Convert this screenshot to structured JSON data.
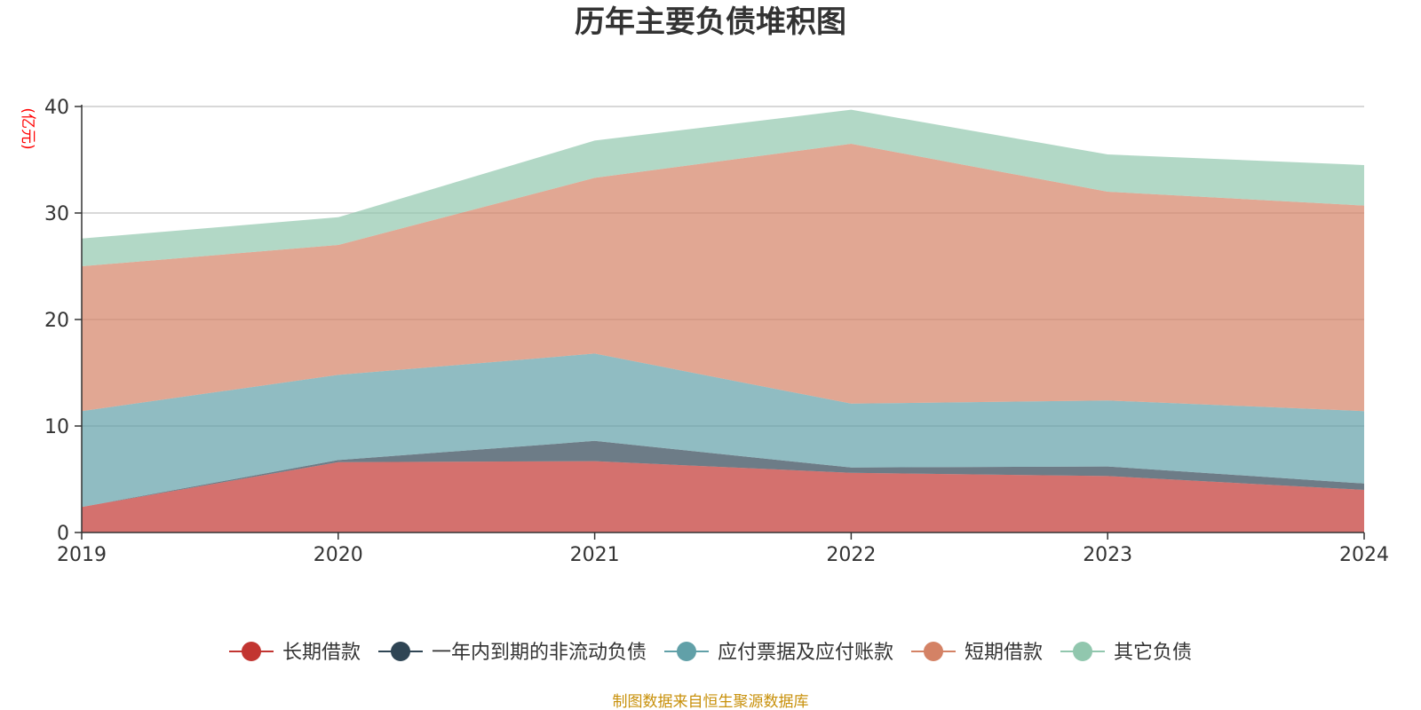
{
  "chart_data": {
    "type": "area",
    "stacked": true,
    "title": "历年主要负债堆积图",
    "ylabel": "(亿元)",
    "xlabel": "",
    "categories": [
      "2019",
      "2020",
      "2021",
      "2022",
      "2023",
      "2024"
    ],
    "ylim": [
      0,
      40
    ],
    "yticks": [
      0,
      10,
      20,
      30,
      40
    ],
    "grid": true,
    "legend_position": "bottom",
    "series": [
      {
        "name": "长期借款",
        "color": "#c23531",
        "values": [
          2.4,
          6.6,
          6.7,
          5.6,
          5.3,
          4.0
        ]
      },
      {
        "name": "一年内到期的非流动负债",
        "color": "#2f4554",
        "values": [
          0.0,
          0.2,
          1.9,
          0.5,
          0.9,
          0.6
        ]
      },
      {
        "name": "应付票据及应付账款",
        "color": "#61a0a8",
        "values": [
          9.0,
          8.0,
          8.2,
          6.0,
          6.2,
          6.8
        ]
      },
      {
        "name": "短期借款",
        "color": "#d48265",
        "values": [
          13.6,
          12.2,
          16.5,
          24.4,
          19.6,
          19.3
        ]
      },
      {
        "name": "其它负债",
        "color": "#91c7ae",
        "values": [
          2.6,
          2.6,
          3.5,
          3.2,
          3.5,
          3.8
        ]
      }
    ],
    "source": "制图数据来自恒生聚源数据库"
  },
  "colors": {
    "unit_label": "#ff0000",
    "source_text": "#c8900a",
    "axis": "#333333",
    "grid": "#cccccc"
  }
}
